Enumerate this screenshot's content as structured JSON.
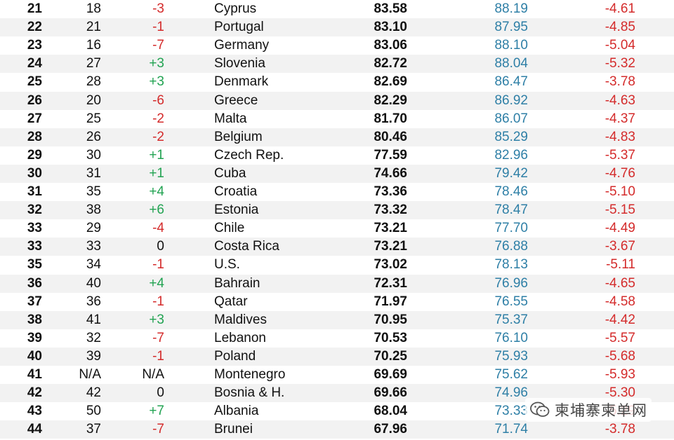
{
  "rows": [
    {
      "rank": "21",
      "prev": "18",
      "change": "-3",
      "change_type": "neg",
      "country": "Cyprus",
      "score": "83.58",
      "ref": "88.19",
      "diff": "-4.61"
    },
    {
      "rank": "22",
      "prev": "21",
      "change": "-1",
      "change_type": "neg",
      "country": "Portugal",
      "score": "83.10",
      "ref": "87.95",
      "diff": "-4.85"
    },
    {
      "rank": "23",
      "prev": "16",
      "change": "-7",
      "change_type": "neg",
      "country": "Germany",
      "score": "83.06",
      "ref": "88.10",
      "diff": "-5.04"
    },
    {
      "rank": "24",
      "prev": "27",
      "change": "+3",
      "change_type": "pos",
      "country": "Slovenia",
      "score": "82.72",
      "ref": "88.04",
      "diff": "-5.32"
    },
    {
      "rank": "25",
      "prev": "28",
      "change": "+3",
      "change_type": "pos",
      "country": "Denmark",
      "score": "82.69",
      "ref": "86.47",
      "diff": "-3.78"
    },
    {
      "rank": "26",
      "prev": "20",
      "change": "-6",
      "change_type": "neg",
      "country": "Greece",
      "score": "82.29",
      "ref": "86.92",
      "diff": "-4.63"
    },
    {
      "rank": "27",
      "prev": "25",
      "change": "-2",
      "change_type": "neg",
      "country": "Malta",
      "score": "81.70",
      "ref": "86.07",
      "diff": "-4.37"
    },
    {
      "rank": "28",
      "prev": "26",
      "change": "-2",
      "change_type": "neg",
      "country": "Belgium",
      "score": "80.46",
      "ref": "85.29",
      "diff": "-4.83"
    },
    {
      "rank": "29",
      "prev": "30",
      "change": "+1",
      "change_type": "pos",
      "country": "Czech Rep.",
      "score": "77.59",
      "ref": "82.96",
      "diff": "-5.37"
    },
    {
      "rank": "30",
      "prev": "31",
      "change": "+1",
      "change_type": "pos",
      "country": "Cuba",
      "score": "74.66",
      "ref": "79.42",
      "diff": "-4.76"
    },
    {
      "rank": "31",
      "prev": "35",
      "change": "+4",
      "change_type": "pos",
      "country": "Croatia",
      "score": "73.36",
      "ref": "78.46",
      "diff": "-5.10"
    },
    {
      "rank": "32",
      "prev": "38",
      "change": "+6",
      "change_type": "pos",
      "country": "Estonia",
      "score": "73.32",
      "ref": "78.47",
      "diff": "-5.15"
    },
    {
      "rank": "33",
      "prev": "29",
      "change": "-4",
      "change_type": "neg",
      "country": "Chile",
      "score": "73.21",
      "ref": "77.70",
      "diff": "-4.49"
    },
    {
      "rank": "33",
      "prev": "33",
      "change": "0",
      "change_type": "neu",
      "country": "Costa Rica",
      "score": "73.21",
      "ref": "76.88",
      "diff": "-3.67"
    },
    {
      "rank": "35",
      "prev": "34",
      "change": "-1",
      "change_type": "neg",
      "country": "U.S.",
      "score": "73.02",
      "ref": "78.13",
      "diff": "-5.11"
    },
    {
      "rank": "36",
      "prev": "40",
      "change": "+4",
      "change_type": "pos",
      "country": "Bahrain",
      "score": "72.31",
      "ref": "76.96",
      "diff": "-4.65"
    },
    {
      "rank": "37",
      "prev": "36",
      "change": "-1",
      "change_type": "neg",
      "country": "Qatar",
      "score": "71.97",
      "ref": "76.55",
      "diff": "-4.58"
    },
    {
      "rank": "38",
      "prev": "41",
      "change": "+3",
      "change_type": "pos",
      "country": "Maldives",
      "score": "70.95",
      "ref": "75.37",
      "diff": "-4.42"
    },
    {
      "rank": "39",
      "prev": "32",
      "change": "-7",
      "change_type": "neg",
      "country": "Lebanon",
      "score": "70.53",
      "ref": "76.10",
      "diff": "-5.57"
    },
    {
      "rank": "40",
      "prev": "39",
      "change": "-1",
      "change_type": "neg",
      "country": "Poland",
      "score": "70.25",
      "ref": "75.93",
      "diff": "-5.68"
    },
    {
      "rank": "41",
      "prev": "N/A",
      "change": "N/A",
      "change_type": "neu",
      "country": "Montenegro",
      "score": "69.69",
      "ref": "75.62",
      "diff": "-5.93"
    },
    {
      "rank": "42",
      "prev": "42",
      "change": "0",
      "change_type": "neu",
      "country": "Bosnia & H.",
      "score": "69.66",
      "ref": "74.96",
      "diff": "-5.30"
    },
    {
      "rank": "43",
      "prev": "50",
      "change": "+7",
      "change_type": "pos",
      "country": "Albania",
      "score": "68.04",
      "ref": "73.33",
      "diff": "-5.29"
    },
    {
      "rank": "44",
      "prev": "37",
      "change": "-7",
      "change_type": "neg",
      "country": "Brunei",
      "score": "67.96",
      "ref": "71.74",
      "diff": "-3.78"
    }
  ],
  "watermark": {
    "text": "柬埔寨柬单网",
    "icon": "wechat-logo-icon"
  },
  "colors": {
    "negative": "#d42b2b",
    "positive": "#22a352",
    "reference": "#2e7fa6",
    "stripe": "#f2f2f2"
  }
}
